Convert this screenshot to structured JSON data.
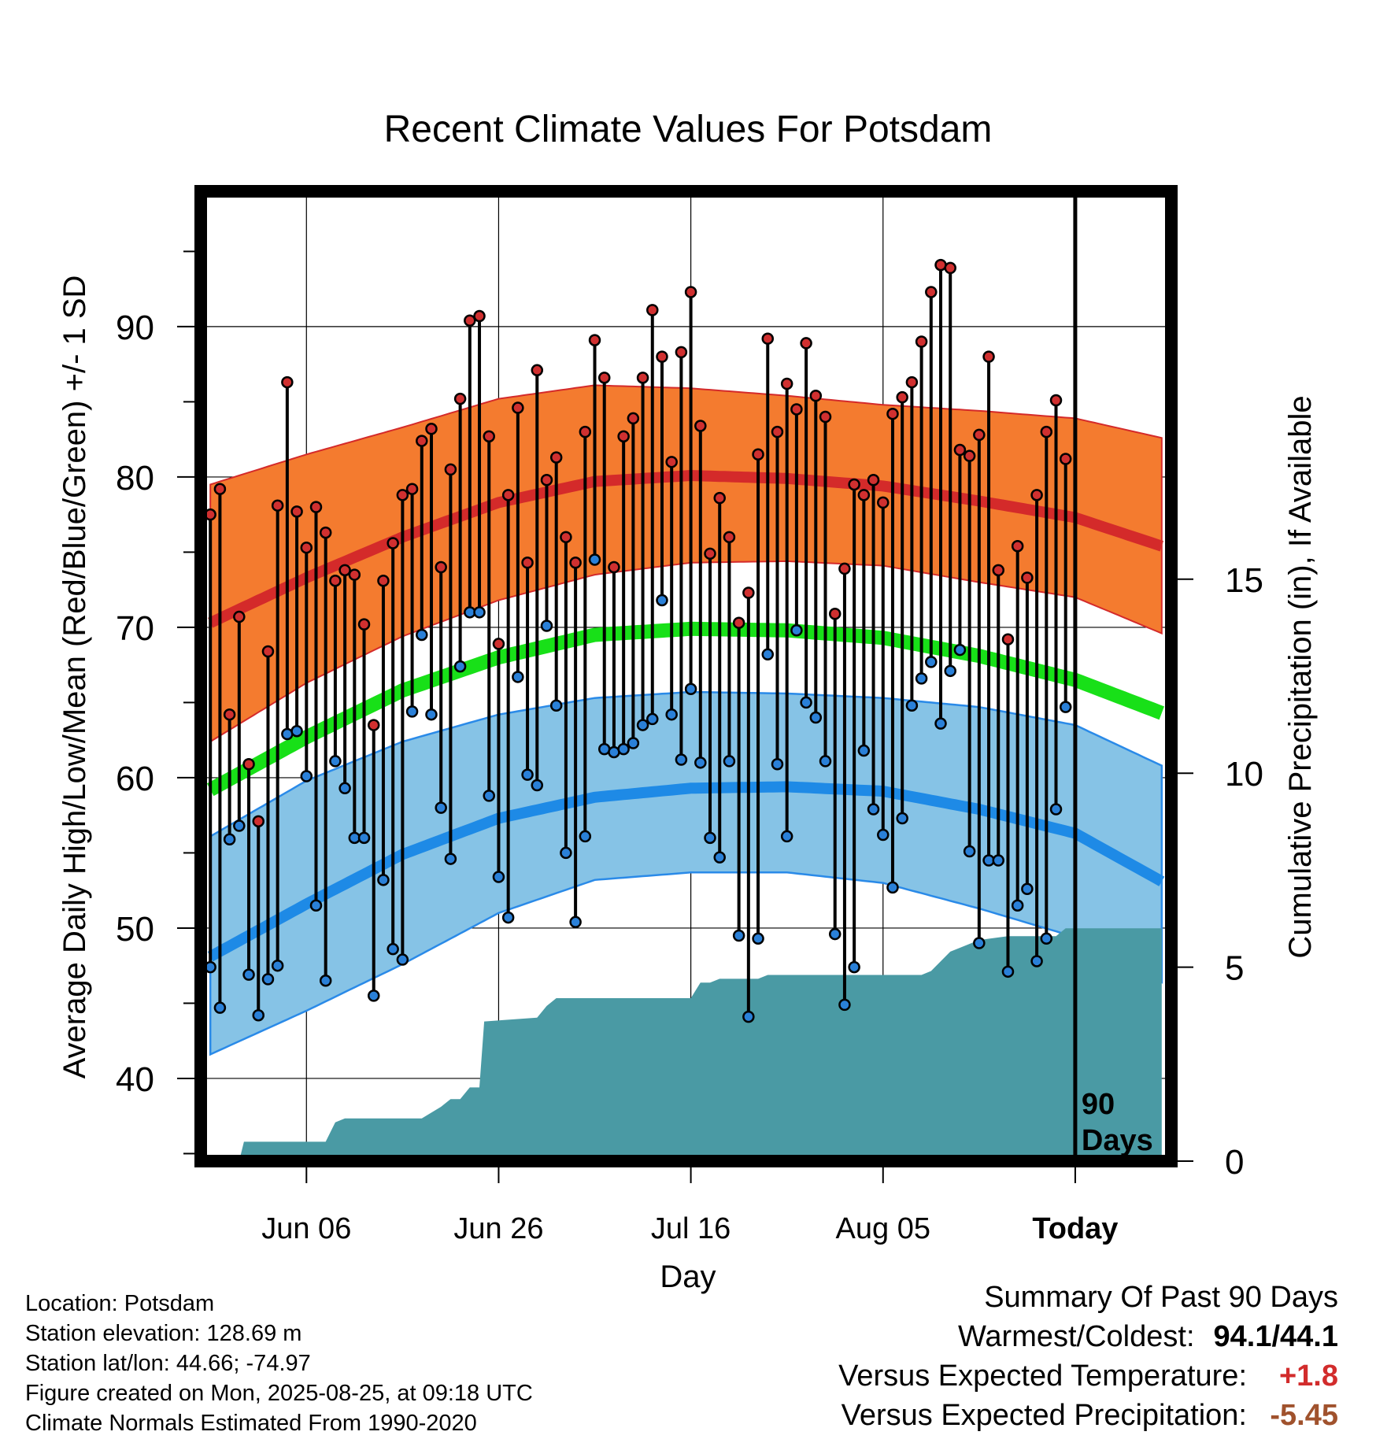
{
  "chart_data": {
    "type": "line",
    "title": "Recent Climate Values For Potsdam",
    "xlabel": "Day",
    "ylabel": "Average Daily High/Low/Mean (Red/Blue/Green) +/- 1 SD",
    "y2label": "Cumulative Precipitation (in), If Available",
    "ylim": [
      34.5,
      99
    ],
    "y_ticks": [
      40,
      50,
      60,
      70,
      80,
      90
    ],
    "y2lim": [
      0,
      25
    ],
    "y2_ticks": [
      0,
      5,
      10,
      15
    ],
    "x_tick_labels": [
      "Jun 06",
      "Jun 26",
      "Jul 16",
      "Aug 05",
      "Today"
    ],
    "x_tick_days": [
      10,
      30,
      50,
      70,
      90
    ],
    "x_range": [
      -1,
      100
    ],
    "grid": true,
    "today_marker_label": [
      "90",
      "Days"
    ],
    "colors": {
      "high_band": "#f47b2f",
      "high_mean": "#d42a2a",
      "low_band": "#86c3e6",
      "low_mean": "#1e8ae6",
      "low_band_edge": "#2a8ae8",
      "mean": "#18e018",
      "precip": "#4a9aa4",
      "high_dot": "#d03030",
      "low_dot": "#2a80d8"
    },
    "series": [
      {
        "name": "High",
        "values": [
          77.5,
          79.2,
          64.2,
          70.7,
          60.9,
          57.1,
          68.4,
          78.1,
          86.3,
          77.7,
          75.3,
          78.0,
          76.3,
          73.1,
          73.8,
          73.5,
          70.2,
          63.5,
          73.1,
          75.6,
          78.8,
          79.2,
          82.4,
          83.2,
          74.0,
          80.5,
          85.2,
          90.4,
          90.7,
          82.7,
          68.9,
          78.8,
          84.6,
          74.3,
          87.1,
          79.8,
          81.3,
          76.0,
          74.3,
          83.0,
          89.1,
          86.6,
          74.0,
          82.7,
          83.9,
          86.6,
          91.1,
          88.0,
          81.0,
          88.3,
          92.3,
          83.4,
          74.9,
          78.6,
          76.0,
          70.3,
          72.3,
          81.5,
          89.2,
          83.0,
          86.2,
          84.5,
          88.9,
          85.4,
          84.0,
          70.9,
          73.9,
          79.5,
          78.8,
          79.8,
          78.3,
          84.2,
          85.3,
          86.3,
          89.0,
          92.3,
          94.1,
          93.9,
          81.8,
          81.4,
          82.8,
          88.0,
          73.8,
          69.2,
          75.4,
          73.3,
          78.8,
          83.0,
          85.1,
          81.2
        ]
      },
      {
        "name": "Low",
        "values": [
          47.4,
          44.7,
          55.9,
          56.8,
          46.9,
          44.2,
          46.6,
          47.5,
          62.9,
          63.1,
          60.1,
          51.5,
          46.5,
          61.1,
          59.3,
          56.0,
          56.0,
          45.5,
          53.2,
          48.6,
          47.9,
          64.4,
          69.5,
          64.2,
          58.0,
          54.6,
          67.4,
          71.0,
          71.0,
          58.8,
          53.4,
          50.7,
          66.7,
          60.2,
          59.5,
          70.1,
          64.8,
          55.0,
          50.4,
          56.1,
          74.5,
          61.9,
          61.7,
          61.9,
          62.3,
          63.5,
          63.9,
          71.8,
          64.2,
          61.2,
          65.9,
          61.0,
          56.0,
          54.7,
          61.1,
          49.5,
          44.1,
          49.3,
          68.2,
          60.9,
          56.1,
          69.8,
          65.0,
          64.0,
          61.1,
          49.6,
          44.9,
          47.4,
          61.8,
          57.9,
          56.2,
          52.7,
          57.3,
          64.8,
          66.6,
          67.7,
          63.6,
          67.1,
          68.5,
          55.1,
          49.0,
          54.5,
          54.5,
          47.1,
          51.5,
          52.6,
          47.8,
          49.3,
          57.9,
          64.7
        ]
      },
      {
        "name": "Normal Mean",
        "days": [
          0,
          10,
          20,
          30,
          40,
          50,
          60,
          70,
          80,
          90,
          99
        ],
        "values": [
          59.2,
          62.7,
          65.8,
          68.0,
          69.5,
          69.9,
          69.8,
          69.3,
          68.1,
          66.5,
          64.3
        ]
      },
      {
        "name": "Normal High",
        "days": [
          0,
          10,
          20,
          30,
          40,
          50,
          60,
          70,
          80,
          90,
          99
        ],
        "values": [
          70.3,
          73.3,
          76.0,
          78.3,
          79.7,
          80.1,
          79.9,
          79.4,
          78.4,
          77.3,
          75.4
        ]
      },
      {
        "name": "Normal High +/- 1 SD",
        "days": [
          0,
          10,
          20,
          30,
          40,
          50,
          60,
          70,
          80,
          90,
          99
        ],
        "upper": [
          79.5,
          81.5,
          83.3,
          85.2,
          86.1,
          85.9,
          85.4,
          84.8,
          84.4,
          83.9,
          82.6
        ],
        "lower": [
          62.4,
          66.3,
          69.4,
          71.8,
          73.5,
          74.3,
          74.4,
          74.1,
          73.0,
          72.0,
          69.6
        ]
      },
      {
        "name": "Normal Low",
        "days": [
          0,
          10,
          20,
          30,
          40,
          50,
          60,
          70,
          80,
          90,
          99
        ],
        "values": [
          48.1,
          51.6,
          54.9,
          57.3,
          58.7,
          59.3,
          59.4,
          59.1,
          57.9,
          56.3,
          53.1
        ]
      },
      {
        "name": "Normal Low +/- 1 SD",
        "days": [
          0,
          10,
          20,
          30,
          40,
          50,
          60,
          70,
          80,
          90,
          99
        ],
        "upper": [
          56.1,
          59.8,
          62.4,
          64.2,
          65.3,
          65.7,
          65.6,
          65.3,
          64.7,
          63.5,
          60.8
        ],
        "lower": [
          41.6,
          44.5,
          47.6,
          51.0,
          53.2,
          53.7,
          53.7,
          53.0,
          51.3,
          49.4,
          46.4
        ]
      },
      {
        "name": "Cumulative Precipitation",
        "days": [
          0,
          3,
          3.5,
          12,
          13,
          14,
          22,
          24,
          25,
          26,
          27,
          28,
          28.5,
          34,
          35,
          36,
          37,
          50,
          51,
          52,
          53,
          57,
          58,
          65,
          69,
          74,
          75,
          77,
          78,
          80,
          83,
          88,
          89,
          99
        ],
        "values": [
          0,
          0,
          0.5,
          0.5,
          1.0,
          1.1,
          1.1,
          1.4,
          1.6,
          1.6,
          1.9,
          1.9,
          3.6,
          3.7,
          4.0,
          4.2,
          4.2,
          4.2,
          4.6,
          4.6,
          4.7,
          4.7,
          4.8,
          4.8,
          4.8,
          4.8,
          4.9,
          5.4,
          5.5,
          5.7,
          5.8,
          5.8,
          6.0,
          6.0
        ]
      }
    ]
  },
  "footer": {
    "location": "Location: Potsdam",
    "elevation": "Station elevation: 128.69 m",
    "latlon": "Station lat/lon: 44.66; -74.97",
    "created": "Figure created on Mon, 2025-08-25, at 09:18 UTC",
    "normals": "Climate Normals Estimated From 1990-2020"
  },
  "summary": {
    "title": "Summary Of Past 90 Days",
    "rows": [
      {
        "label": "Warmest/Coldest:",
        "value": "94.1/44.1",
        "color": "#000000"
      },
      {
        "label": "Versus Expected Temperature:",
        "value": "+1.8",
        "color": "#d22c2c"
      },
      {
        "label": "Versus Expected Precipitation:",
        "value": "-5.45",
        "color": "#a0522d"
      }
    ]
  }
}
